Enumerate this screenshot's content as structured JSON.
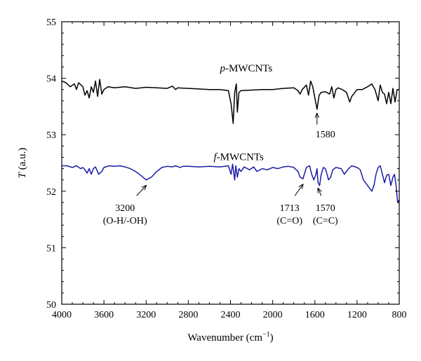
{
  "chart_data": {
    "type": "line",
    "xlabel": "Wavenumber (cm",
    "xlabel_sup": "−1",
    "xlabel_close": ")",
    "ylabel": "T",
    "ylabel_unit": " (a.u.)",
    "xlim": [
      4000,
      800
    ],
    "ylim": [
      50,
      55
    ],
    "x_ticks": [
      4000,
      3600,
      3200,
      2800,
      2400,
      2000,
      1600,
      1200,
      800
    ],
    "y_ticks": [
      50,
      51,
      52,
      53,
      54,
      55
    ],
    "grid": false,
    "series": [
      {
        "name_italic": "p",
        "name_rest": "-MWCNTs",
        "color": "#000000",
        "points": [
          [
            4000,
            53.95
          ],
          [
            3960,
            53.92
          ],
          [
            3920,
            53.85
          ],
          [
            3880,
            53.9
          ],
          [
            3860,
            53.8
          ],
          [
            3840,
            53.92
          ],
          [
            3800,
            53.85
          ],
          [
            3780,
            53.7
          ],
          [
            3760,
            53.78
          ],
          [
            3740,
            53.65
          ],
          [
            3720,
            53.85
          ],
          [
            3700,
            53.75
          ],
          [
            3680,
            53.95
          ],
          [
            3660,
            53.68
          ],
          [
            3640,
            53.98
          ],
          [
            3620,
            53.72
          ],
          [
            3600,
            53.8
          ],
          [
            3560,
            53.85
          ],
          [
            3500,
            53.83
          ],
          [
            3400,
            53.85
          ],
          [
            3300,
            53.82
          ],
          [
            3200,
            53.84
          ],
          [
            3100,
            53.83
          ],
          [
            3000,
            53.82
          ],
          [
            2950,
            53.86
          ],
          [
            2920,
            53.8
          ],
          [
            2900,
            53.83
          ],
          [
            2800,
            53.82
          ],
          [
            2700,
            53.81
          ],
          [
            2600,
            53.8
          ],
          [
            2500,
            53.8
          ],
          [
            2420,
            53.78
          ],
          [
            2395,
            53.55
          ],
          [
            2375,
            53.2
          ],
          [
            2360,
            53.75
          ],
          [
            2345,
            53.9
          ],
          [
            2335,
            53.4
          ],
          [
            2320,
            53.75
          ],
          [
            2300,
            53.78
          ],
          [
            2200,
            53.79
          ],
          [
            2100,
            53.8
          ],
          [
            2000,
            53.8
          ],
          [
            1900,
            53.82
          ],
          [
            1800,
            53.83
          ],
          [
            1760,
            53.78
          ],
          [
            1740,
            53.72
          ],
          [
            1720,
            53.8
          ],
          [
            1680,
            53.88
          ],
          [
            1660,
            53.7
          ],
          [
            1640,
            53.95
          ],
          [
            1620,
            53.85
          ],
          [
            1600,
            53.65
          ],
          [
            1580,
            53.45
          ],
          [
            1560,
            53.7
          ],
          [
            1540,
            53.75
          ],
          [
            1500,
            53.76
          ],
          [
            1460,
            53.72
          ],
          [
            1440,
            53.85
          ],
          [
            1420,
            53.65
          ],
          [
            1400,
            53.8
          ],
          [
            1380,
            53.83
          ],
          [
            1340,
            53.8
          ],
          [
            1300,
            53.75
          ],
          [
            1270,
            53.58
          ],
          [
            1250,
            53.68
          ],
          [
            1200,
            53.8
          ],
          [
            1150,
            53.8
          ],
          [
            1100,
            53.85
          ],
          [
            1060,
            53.9
          ],
          [
            1030,
            53.8
          ],
          [
            1000,
            53.6
          ],
          [
            980,
            53.88
          ],
          [
            960,
            53.75
          ],
          [
            940,
            53.72
          ],
          [
            920,
            53.55
          ],
          [
            900,
            53.75
          ],
          [
            880,
            53.55
          ],
          [
            860,
            53.82
          ],
          [
            840,
            53.58
          ],
          [
            820,
            53.8
          ],
          [
            800,
            53.8
          ]
        ]
      },
      {
        "name_italic": "f",
        "name_rest": "-MWCNTs",
        "color": "#1c1ca8",
        "points": [
          [
            4000,
            52.45
          ],
          [
            3950,
            52.45
          ],
          [
            3900,
            52.42
          ],
          [
            3860,
            52.45
          ],
          [
            3820,
            52.4
          ],
          [
            3800,
            52.42
          ],
          [
            3780,
            52.38
          ],
          [
            3760,
            52.32
          ],
          [
            3740,
            52.4
          ],
          [
            3720,
            52.3
          ],
          [
            3700,
            52.4
          ],
          [
            3680,
            52.43
          ],
          [
            3650,
            52.3
          ],
          [
            3620,
            52.35
          ],
          [
            3600,
            52.42
          ],
          [
            3550,
            52.45
          ],
          [
            3500,
            52.44
          ],
          [
            3450,
            52.45
          ],
          [
            3400,
            52.43
          ],
          [
            3350,
            52.4
          ],
          [
            3300,
            52.35
          ],
          [
            3250,
            52.28
          ],
          [
            3200,
            52.2
          ],
          [
            3150,
            52.25
          ],
          [
            3100,
            52.35
          ],
          [
            3050,
            52.42
          ],
          [
            3000,
            52.44
          ],
          [
            2950,
            52.43
          ],
          [
            2920,
            52.45
          ],
          [
            2880,
            52.42
          ],
          [
            2850,
            52.44
          ],
          [
            2800,
            52.44
          ],
          [
            2700,
            52.43
          ],
          [
            2600,
            52.44
          ],
          [
            2500,
            52.43
          ],
          [
            2420,
            52.45
          ],
          [
            2395,
            52.3
          ],
          [
            2380,
            52.48
          ],
          [
            2360,
            52.2
          ],
          [
            2350,
            52.45
          ],
          [
            2335,
            52.25
          ],
          [
            2320,
            52.4
          ],
          [
            2300,
            52.35
          ],
          [
            2270,
            52.43
          ],
          [
            2220,
            52.38
          ],
          [
            2180,
            52.43
          ],
          [
            2150,
            52.35
          ],
          [
            2100,
            52.4
          ],
          [
            2050,
            52.38
          ],
          [
            2000,
            52.42
          ],
          [
            1950,
            52.4
          ],
          [
            1900,
            52.43
          ],
          [
            1850,
            52.44
          ],
          [
            1800,
            52.42
          ],
          [
            1760,
            52.35
          ],
          [
            1740,
            52.25
          ],
          [
            1713,
            52.22
          ],
          [
            1700,
            52.3
          ],
          [
            1680,
            52.42
          ],
          [
            1650,
            52.45
          ],
          [
            1630,
            52.3
          ],
          [
            1610,
            52.2
          ],
          [
            1590,
            52.3
          ],
          [
            1580,
            52.4
          ],
          [
            1570,
            52.15
          ],
          [
            1555,
            52.1
          ],
          [
            1540,
            52.3
          ],
          [
            1520,
            52.42
          ],
          [
            1500,
            52.4
          ],
          [
            1470,
            52.2
          ],
          [
            1450,
            52.25
          ],
          [
            1430,
            52.38
          ],
          [
            1400,
            52.42
          ],
          [
            1350,
            52.4
          ],
          [
            1320,
            52.3
          ],
          [
            1280,
            52.4
          ],
          [
            1250,
            52.45
          ],
          [
            1200,
            52.42
          ],
          [
            1170,
            52.38
          ],
          [
            1140,
            52.2
          ],
          [
            1100,
            52.1
          ],
          [
            1080,
            52.05
          ],
          [
            1060,
            52.0
          ],
          [
            1040,
            52.1
          ],
          [
            1020,
            52.3
          ],
          [
            1000,
            52.42
          ],
          [
            980,
            52.45
          ],
          [
            960,
            52.3
          ],
          [
            940,
            52.15
          ],
          [
            920,
            52.28
          ],
          [
            900,
            52.3
          ],
          [
            880,
            52.1
          ],
          [
            860,
            52.25
          ],
          [
            845,
            52.3
          ],
          [
            830,
            52.1
          ],
          [
            815,
            51.8
          ],
          [
            800,
            51.85
          ]
        ]
      }
    ],
    "annotations": [
      {
        "text": "1580",
        "x": 1580,
        "y": 53.45,
        "text_x": 1500,
        "text_y": 52.95,
        "arrow_from_y": 53.18
      },
      {
        "text": "3200",
        "text2": "(O-H/-OH)",
        "x": 3200,
        "y": 52.2,
        "text_x": 3400,
        "text_y": 51.65,
        "arrow_from_x": 3290,
        "arrow_from_y": 51.92
      },
      {
        "text": "1713",
        "text2": "(C=O)",
        "x": 1713,
        "y": 52.22,
        "text_x": 1840,
        "text_y": 51.65,
        "arrow_from_x": 1790,
        "arrow_from_y": 51.92
      },
      {
        "text": "1570",
        "text2": "(C=C)",
        "x": 1570,
        "y": 52.15,
        "text_x": 1500,
        "text_y": 51.65,
        "arrow_from_x": 1540,
        "arrow_from_y": 51.92
      }
    ]
  }
}
